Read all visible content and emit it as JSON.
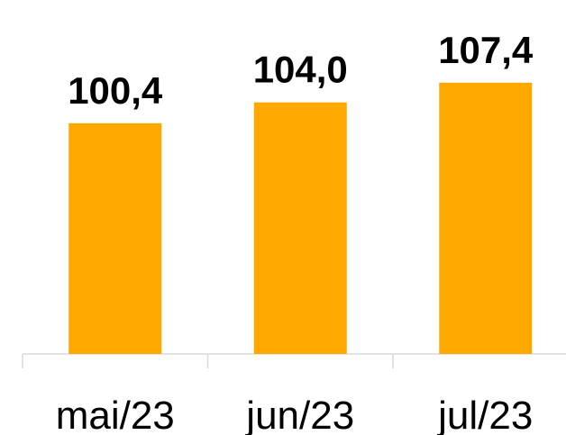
{
  "chart_data": {
    "type": "bar",
    "categories": [
      "mai/23",
      "jun/23",
      "jul/23"
    ],
    "values": [
      100.4,
      104.0,
      107.4
    ],
    "value_labels": [
      "100,4",
      "104,0",
      "107,4"
    ],
    "color": "#ffa800",
    "ylim": [
      60.6,
      115.6
    ]
  }
}
